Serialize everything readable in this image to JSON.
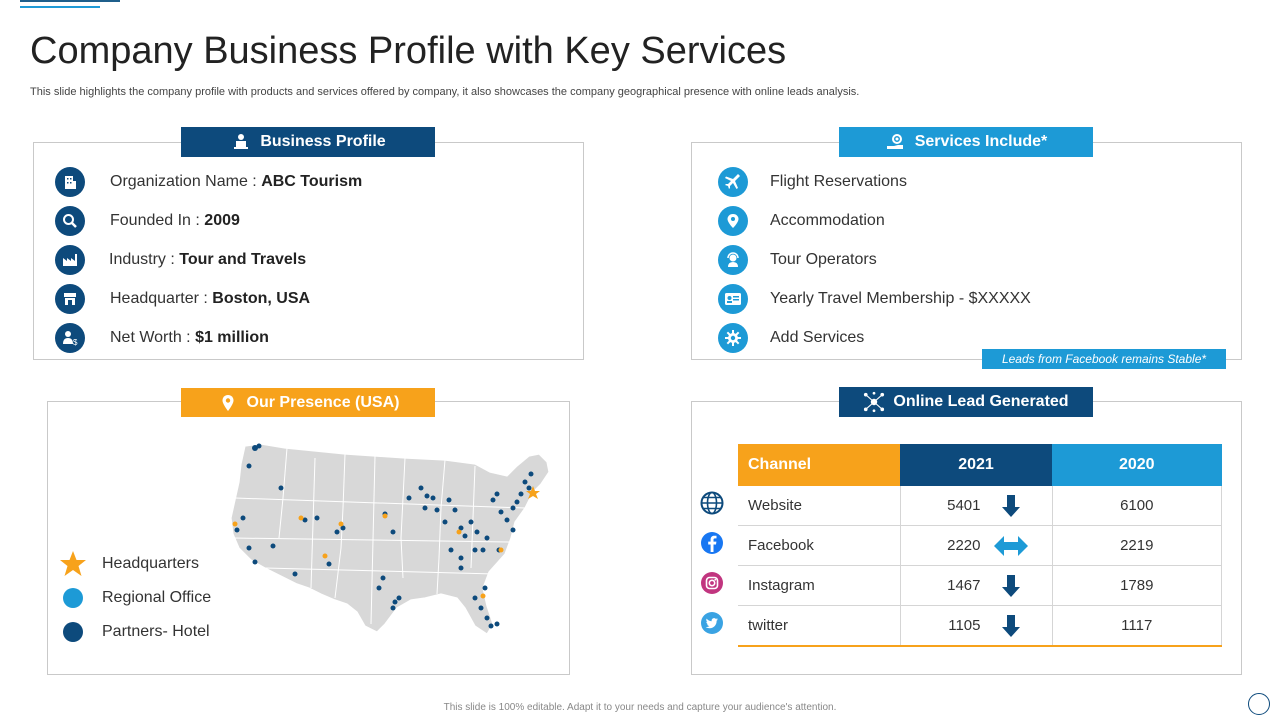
{
  "title": "Company Business Profile with Key Services",
  "subtitle": "This slide highlights the company profile with products and services offered by company, it also showcases the company geographical presence with online leads analysis.",
  "business_profile": {
    "header": "Business Profile",
    "items": [
      {
        "icon": "building-icon",
        "label": "Organization Name : ",
        "value": "ABC Tourism"
      },
      {
        "icon": "search-icon",
        "label": "Founded In  : ",
        "value": "2009"
      },
      {
        "icon": "factory-icon",
        "label": "Industry  : ",
        "value": "Tour and Travels"
      },
      {
        "icon": "store-icon",
        "label": "Headquarter : ",
        "value": "Boston, USA"
      },
      {
        "icon": "person-dollar-icon",
        "label": "Net Worth : ",
        "value": "$1 million"
      }
    ]
  },
  "services": {
    "header": "Services Include*",
    "items": [
      {
        "icon": "plane-icon",
        "label": "Flight Reservations"
      },
      {
        "icon": "location-pin-icon",
        "label": "Accommodation"
      },
      {
        "icon": "operator-icon",
        "label": "Tour Operators"
      },
      {
        "icon": "membership-card-icon",
        "label": "Yearly Travel Membership - $XXXXX"
      },
      {
        "icon": "gear-icon",
        "label": "Add Services"
      }
    ]
  },
  "presence": {
    "header": "Our Presence (USA)",
    "legend": [
      {
        "icon": "star-icon",
        "label": "Headquarters",
        "color": "#f7a21b"
      },
      {
        "icon": "dot-icon",
        "label": "Regional Office",
        "color": "#1d9ad6"
      },
      {
        "icon": "dot-icon",
        "label": "Partners- Hotel",
        "color": "#0d4a7c"
      }
    ]
  },
  "leads": {
    "callout": "Leads from Facebook remains Stable*",
    "header": "Online Lead Generated",
    "columns": [
      "Channel",
      "2021",
      "2020"
    ],
    "rows": [
      {
        "icon": "globe-icon",
        "channel": "Website",
        "y2021": "5401",
        "trend": "down",
        "y2020": "6100"
      },
      {
        "icon": "facebook-icon",
        "channel": "Facebook",
        "y2021": "2220",
        "trend": "stable",
        "y2020": "2219"
      },
      {
        "icon": "instagram-icon",
        "channel": "Instagram",
        "y2021": "1467",
        "trend": "down",
        "y2020": "1789"
      },
      {
        "icon": "twitter-icon",
        "channel": "twitter",
        "y2021": "1105",
        "trend": "down",
        "y2020": "1117"
      }
    ]
  },
  "footer": "This slide is 100% editable. Adapt it to your needs and capture your audience's attention.",
  "colors": {
    "navy": "#0d4a7c",
    "blue": "#1d9ad6",
    "orange": "#f7a21b"
  }
}
